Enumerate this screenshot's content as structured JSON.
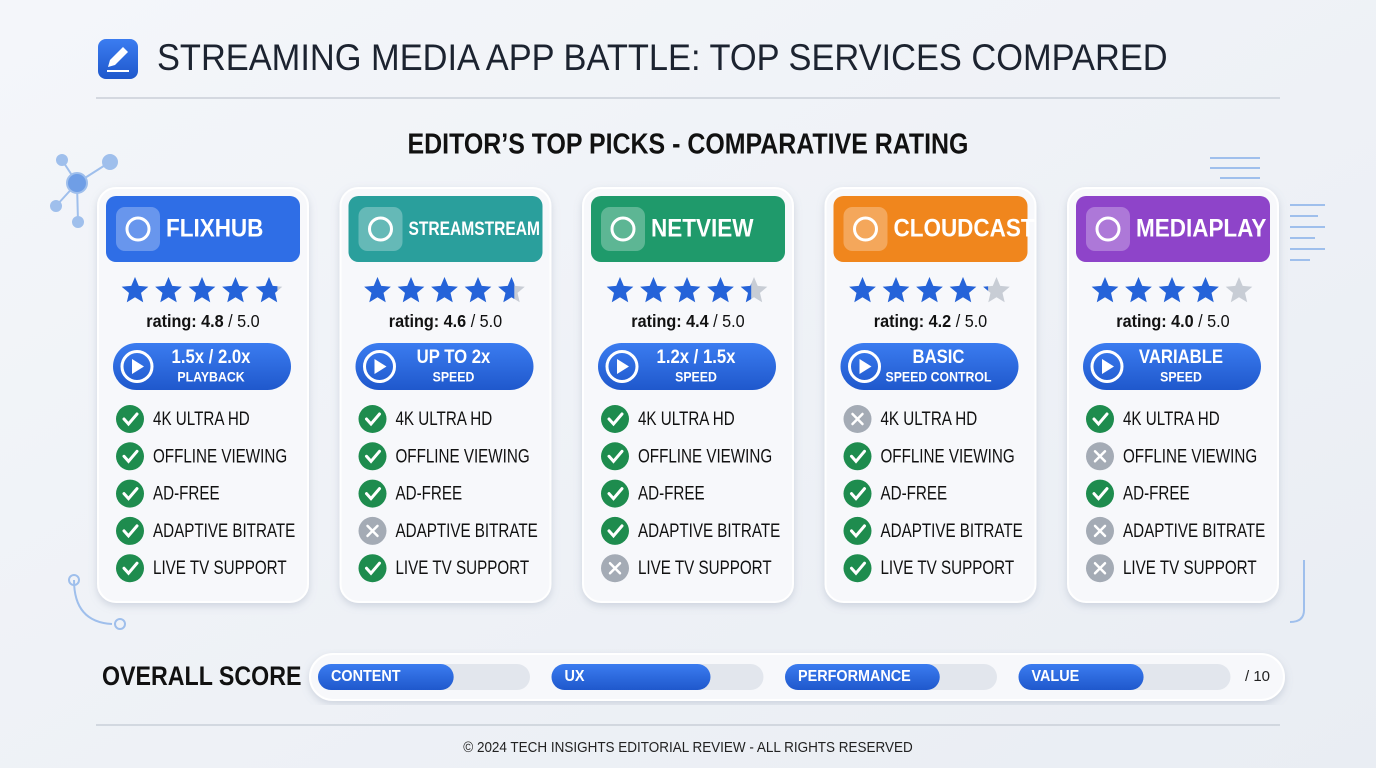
{
  "header": {
    "title": "STREAMING MEDIA APP BATTLE: TOP SERVICES COMPARED",
    "subtitle": "EDITOR’S TOP PICKS - COMPARATIVE RATING"
  },
  "cards": [
    {
      "name": "FLIXHUB",
      "color": "#2f6ee6",
      "rating_label": "rating:",
      "rating": 4.8,
      "rating_max": {
        "value": 5,
        "label": "/ 5.0"
      },
      "badge": [
        "1.5x / 2.0x",
        "PLAYBACK"
      ],
      "features": [
        {
          "label": "4K ULTRA HD",
          "available": true
        },
        {
          "label": "OFFLINE VIEWING",
          "available": true
        },
        {
          "label": "AD-FREE",
          "available": true
        },
        {
          "label": "ADAPTIVE BITRATE",
          "available": true
        },
        {
          "label": "LIVE TV SUPPORT",
          "available": true
        }
      ]
    },
    {
      "name": "STREAMSTREAM",
      "color": "#2a9f9c",
      "rating_label": "rating:",
      "rating": 4.6,
      "rating_max": {
        "value": 5,
        "label": "/ 5.0"
      },
      "badge": [
        "UP TO 2x",
        "SPEED"
      ],
      "features": [
        {
          "label": "4K ULTRA HD",
          "available": true
        },
        {
          "label": "OFFLINE VIEWING",
          "available": true
        },
        {
          "label": "AD-FREE",
          "available": true
        },
        {
          "label": "ADAPTIVE BITRATE",
          "available": false
        },
        {
          "label": "LIVE TV SUPPORT",
          "available": true
        }
      ]
    },
    {
      "name": "NETVIEW",
      "color": "#1f9a6b",
      "rating_label": "rating:",
      "rating": 4.4,
      "rating_max": {
        "value": 5,
        "label": "/ 5.0"
      },
      "badge": [
        "1.2x / 1.5x",
        "SPEED"
      ],
      "features": [
        {
          "label": "4K ULTRA HD",
          "available": true
        },
        {
          "label": "OFFLINE VIEWING",
          "available": true
        },
        {
          "label": "AD-FREE",
          "available": true
        },
        {
          "label": "ADAPTIVE BITRATE",
          "available": true
        },
        {
          "label": "LIVE TV SUPPORT",
          "available": false
        }
      ]
    },
    {
      "name": "CLOUDCAST",
      "color": "#f0861d",
      "rating_label": "rating:",
      "rating": 4.2,
      "rating_max": {
        "value": 5,
        "label": "/ 5.0"
      },
      "badge": [
        "BASIC",
        "SPEED CONTROL"
      ],
      "features": [
        {
          "label": "4K ULTRA HD",
          "available": false
        },
        {
          "label": "OFFLINE VIEWING",
          "available": true
        },
        {
          "label": "AD-FREE",
          "available": true
        },
        {
          "label": "ADAPTIVE BITRATE",
          "available": true
        },
        {
          "label": "LIVE TV SUPPORT",
          "available": true
        }
      ]
    },
    {
      "name": "MEDIAPLAY",
      "color": "#8e44c9",
      "rating_label": "rating:",
      "rating": {
        "value": 4,
        "label": "4.0"
      },
      "rating_max": {
        "value": 5,
        "label": "/ 5.0"
      },
      "badge": [
        "VARIABLE",
        "SPEED"
      ],
      "features": [
        {
          "label": "4K ULTRA HD",
          "available": true
        },
        {
          "label": "OFFLINE VIEWING",
          "available": false
        },
        {
          "label": "AD-FREE",
          "available": true
        },
        {
          "label": "ADAPTIVE BITRATE",
          "available": false
        },
        {
          "label": "LIVE TV SUPPORT",
          "available": false
        }
      ]
    }
  ],
  "overall": {
    "label": "OVERALL SCORE",
    "max": {
      "value": 10,
      "label": "/ 10"
    },
    "items": [
      {
        "label": "CONTENT",
        "value": 6.4
      },
      {
        "label": "UX",
        "value": 7.5
      },
      {
        "label": "PERFORMANCE",
        "value": 7.3
      },
      {
        "label": "VALUE",
        "value": 5.9
      }
    ]
  },
  "footer": "© 2024 TECH INSIGHTS EDITORIAL REVIEW - ALL RIGHTS RESERVED"
}
